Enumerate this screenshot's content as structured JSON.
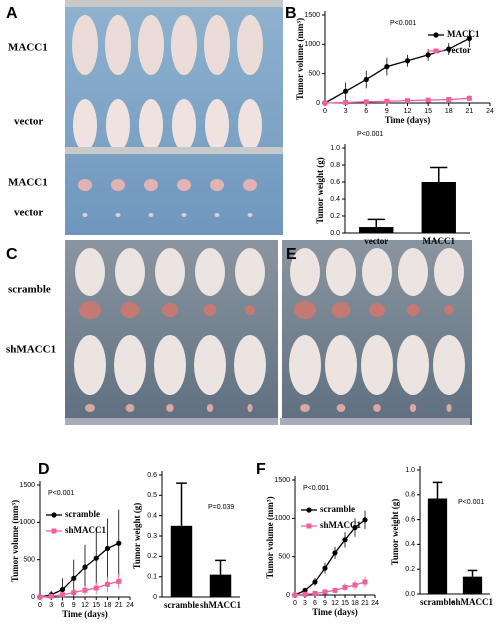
{
  "panel_letters": [
    "A",
    "B",
    "C",
    "D",
    "E",
    "F"
  ],
  "photo_labels": {
    "a": [
      "MACC1",
      "vector",
      "MACC1",
      "vector"
    ],
    "c": [
      "scramble",
      "shMACC1"
    ]
  },
  "chart_data": [
    {
      "type": "line",
      "annotation": "P<0.001",
      "xlabel": "Time (days)",
      "ylabel": "Tumor volume (mm³)",
      "x": [
        0,
        3,
        6,
        9,
        12,
        15,
        18,
        21
      ],
      "xlim": [
        0,
        24
      ],
      "xticks": [
        0,
        3,
        6,
        9,
        12,
        15,
        18,
        21,
        24
      ],
      "ylim": [
        0,
        1500
      ],
      "yticks": [
        0,
        500,
        1000,
        1500
      ],
      "legend": "upper right",
      "series": [
        {
          "name": "MACC1",
          "color": "#000000",
          "marker": "circle",
          "values": [
            0,
            200,
            400,
            620,
            720,
            820,
            920,
            1100
          ],
          "errors": [
            0,
            150,
            150,
            150,
            100,
            100,
            100,
            150
          ]
        },
        {
          "name": "vector",
          "color": "#f0609e",
          "marker": "square",
          "values": [
            0,
            10,
            20,
            30,
            40,
            50,
            60,
            80
          ],
          "errors": [
            0,
            10,
            15,
            20,
            25,
            30,
            40,
            50
          ]
        }
      ]
    },
    {
      "type": "bar",
      "annotation": "P<0.001",
      "ylabel": "Tumor weight (g)",
      "categories": [
        "vector",
        "MACC1"
      ],
      "values": [
        0.07,
        0.6
      ],
      "errors": [
        0.09,
        0.17
      ],
      "color": "#000000",
      "ylim": [
        0,
        1
      ],
      "yticks": [
        {
          "value": 0,
          "label": "0.0"
        },
        0.2,
        0.4,
        0.6,
        0.8,
        {
          "value": 1,
          "label": "1.0"
        }
      ]
    },
    {
      "type": "line",
      "annotation": "P<0.001",
      "xlabel": "Time (days)",
      "ylabel": "Tumor volume (mm³)",
      "x": [
        0,
        3,
        6,
        9,
        12,
        15,
        18,
        21
      ],
      "xlim": [
        0,
        24
      ],
      "xticks": [
        0,
        3,
        6,
        9,
        12,
        15,
        18,
        21,
        24
      ],
      "ylim": [
        0,
        1500
      ],
      "yticks": [
        0,
        500,
        1000,
        1500
      ],
      "legend": "upper left",
      "series": [
        {
          "name": "scramble",
          "color": "#000000",
          "marker": "circle",
          "values": [
            0,
            30,
            100,
            250,
            400,
            520,
            650,
            720
          ],
          "errors": [
            0,
            50,
            150,
            250,
            300,
            350,
            400,
            450
          ]
        },
        {
          "name": "shMACC1",
          "color": "#f0609e",
          "marker": "square",
          "values": [
            0,
            10,
            30,
            60,
            90,
            120,
            170,
            210
          ],
          "errors": [
            0,
            10,
            20,
            40,
            60,
            80,
            100,
            100
          ]
        }
      ]
    },
    {
      "type": "bar",
      "annotation": "P=0.039",
      "ylabel": "Tumor weight (g)",
      "categories": [
        "scramble",
        "shMACC1"
      ],
      "values": [
        0.35,
        0.11
      ],
      "errors": [
        0.21,
        0.07
      ],
      "color": "#000000",
      "ylim": [
        0,
        0.6
      ],
      "yticks": [
        0,
        0.1,
        0.2,
        0.3,
        0.4,
        0.5,
        0.6
      ]
    },
    {
      "type": "line",
      "annotation": "P<0.001",
      "xlabel": "Time (days)",
      "ylabel": "Tumor volume (mm³)",
      "x": [
        0,
        3,
        6,
        9,
        12,
        15,
        18,
        21
      ],
      "xlim": [
        0,
        24
      ],
      "xticks": [
        0,
        3,
        6,
        9,
        12,
        15,
        18,
        21,
        24
      ],
      "ylim": [
        0,
        1500
      ],
      "yticks": [
        0,
        500,
        1000,
        1500
      ],
      "legend": "upper left",
      "series": [
        {
          "name": "scramble",
          "color": "#000000",
          "marker": "circle",
          "values": [
            0,
            60,
            170,
            350,
            550,
            720,
            880,
            980
          ],
          "errors": [
            0,
            30,
            50,
            70,
            80,
            100,
            120,
            120
          ]
        },
        {
          "name": "shMACC1",
          "color": "#f0609e",
          "marker": "square",
          "values": [
            0,
            10,
            20,
            40,
            60,
            100,
            130,
            170
          ],
          "errors": [
            0,
            10,
            15,
            20,
            30,
            50,
            60,
            70
          ]
        }
      ]
    },
    {
      "type": "bar",
      "annotation": "P<0.001",
      "ylabel": "Tumor weight (g)",
      "categories": [
        "scramble",
        "shMACC1"
      ],
      "values": [
        0.77,
        0.14
      ],
      "errors": [
        0.13,
        0.05
      ],
      "color": "#000000",
      "ylim": [
        0,
        1
      ],
      "yticks": [
        {
          "value": 0,
          "label": "0.0"
        },
        0.2,
        0.4,
        0.6,
        0.8,
        {
          "value": 1,
          "label": "1.0"
        }
      ]
    }
  ]
}
